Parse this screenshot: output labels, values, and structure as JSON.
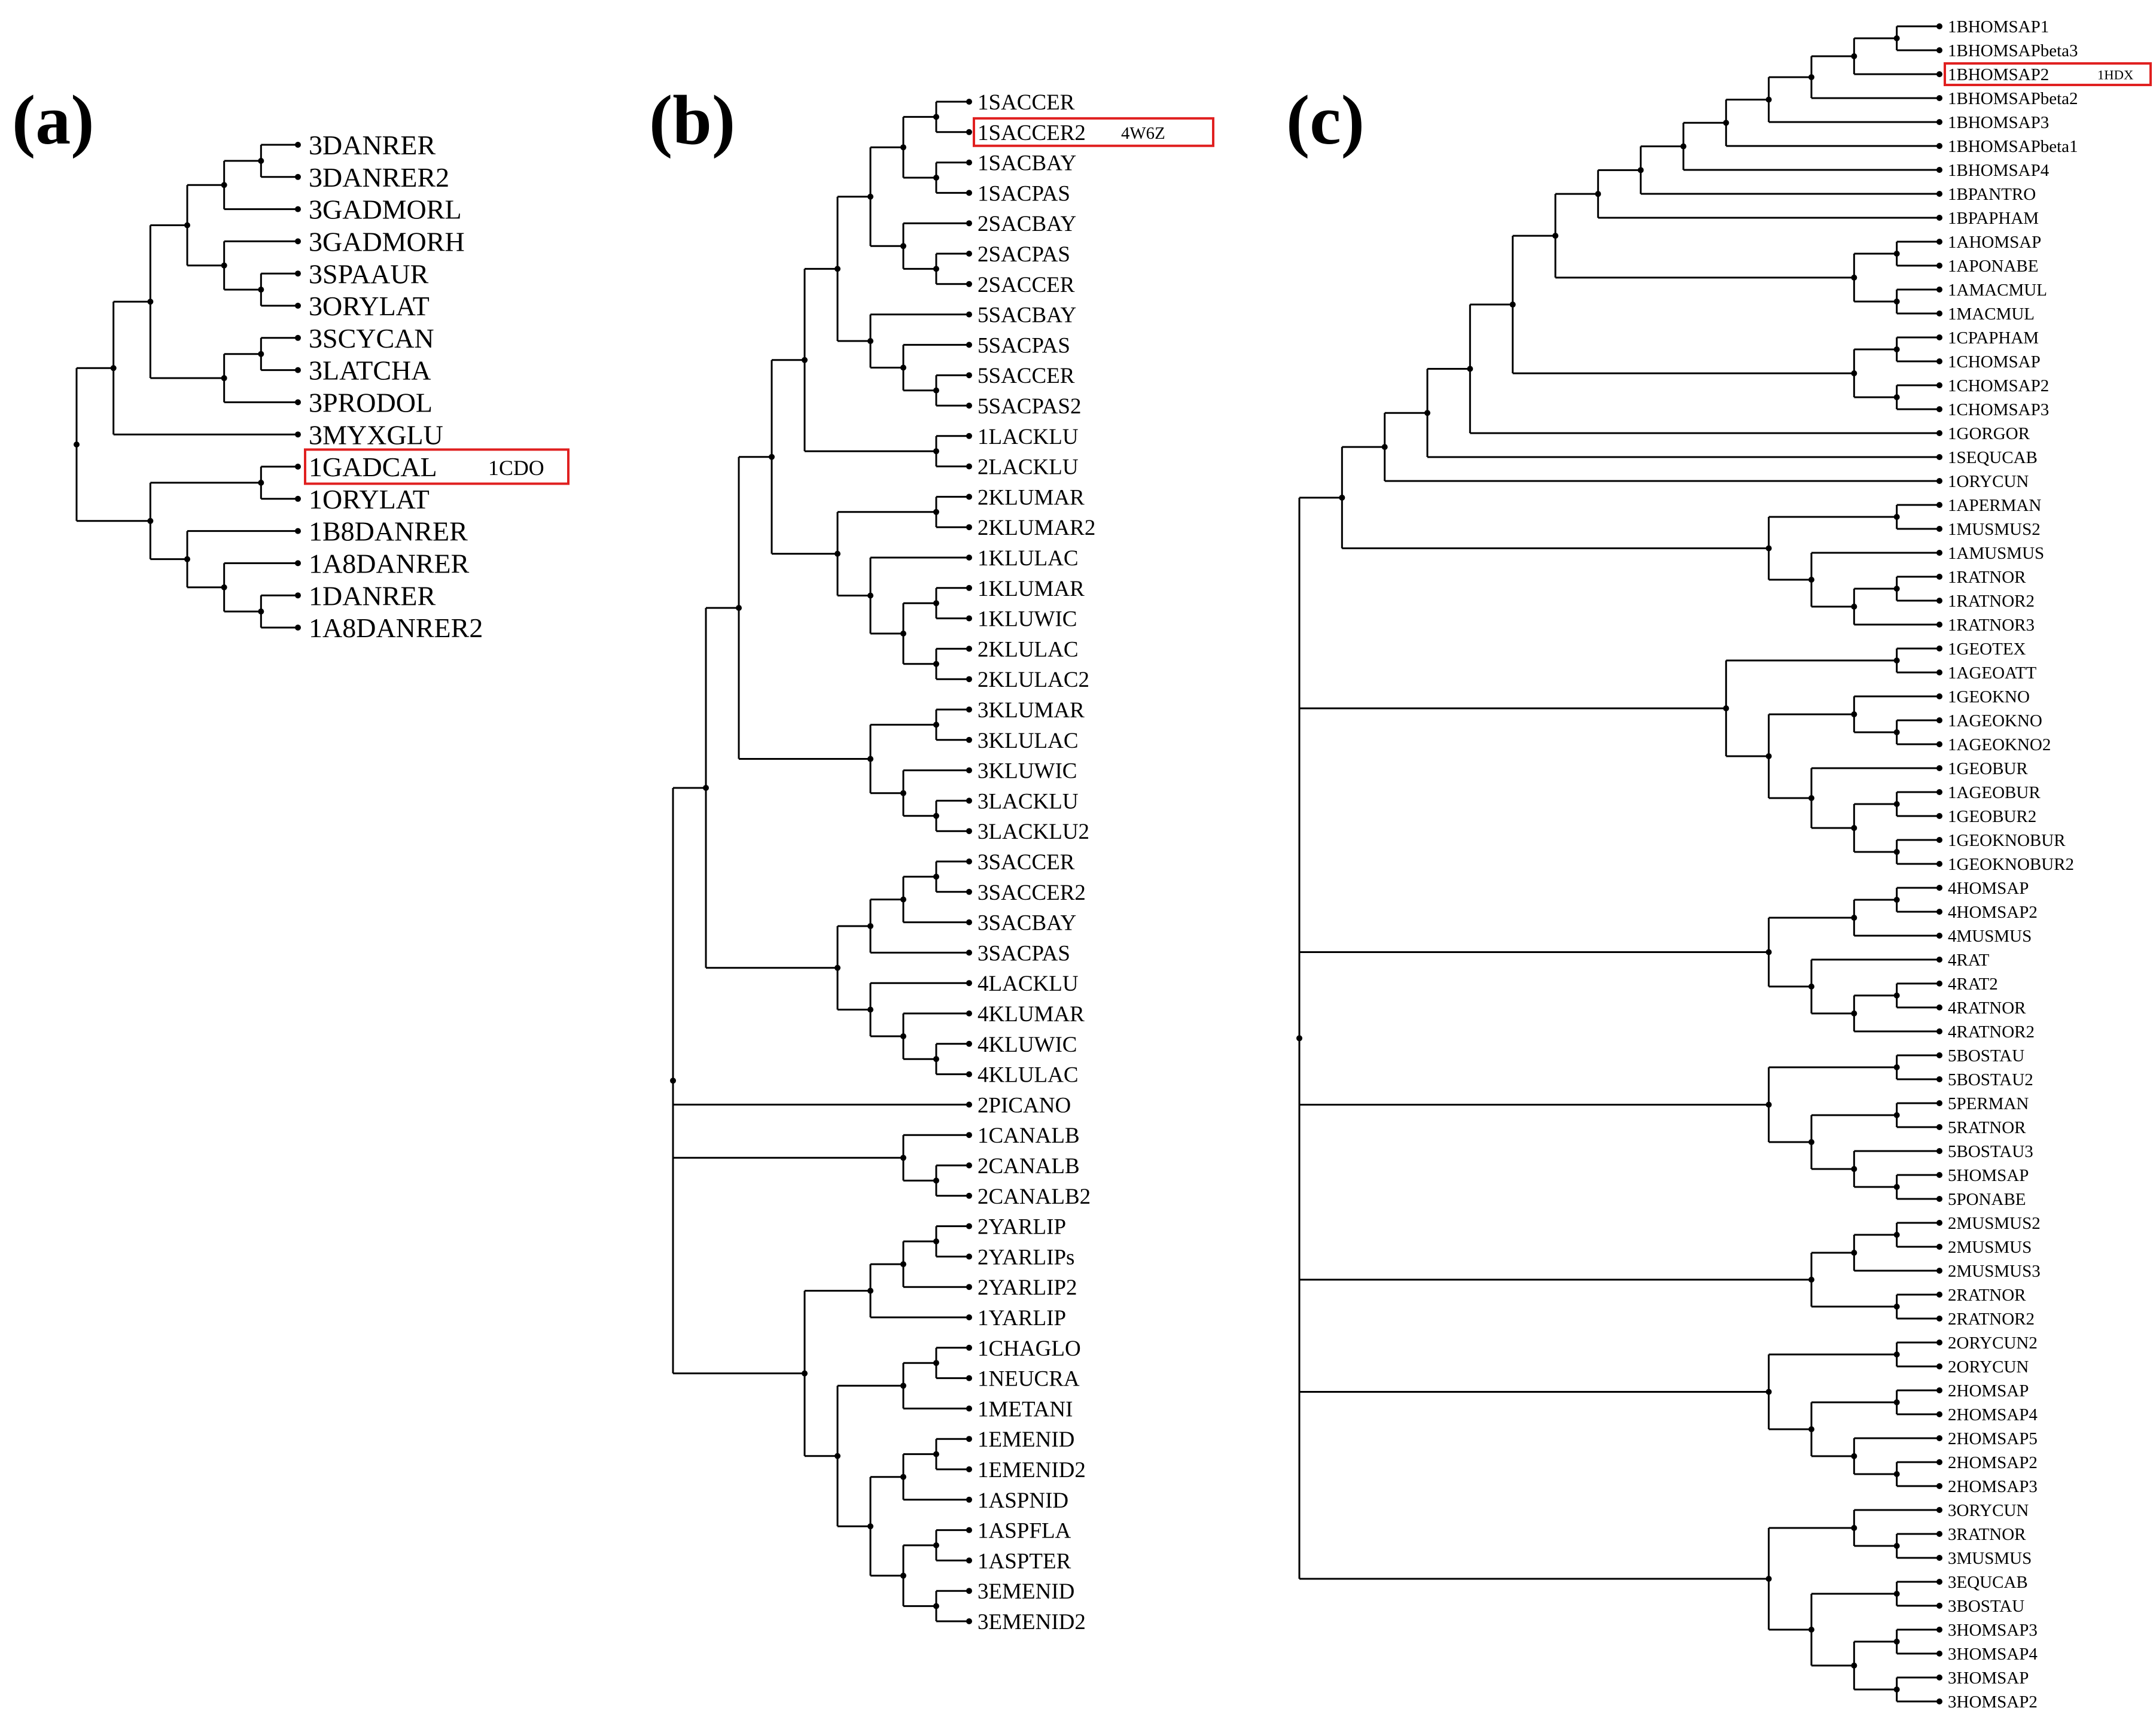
{
  "panels": [
    {
      "id": "a",
      "label": "(a)",
      "highlight": {
        "leaf": "1GADCAL",
        "code": "1CDO"
      },
      "tree": [
        [
          [
            [
              [
                [
                  "3DANRER",
                  "3DANRER2"
                ],
                "3GADMORL"
              ],
              [
                "3GADMORH",
                [
                  "3SPAAUR",
                  "3ORYLAT"
                ]
              ]
            ],
            [
              [
                "3SCYCAN",
                "3LATCHA"
              ],
              "3PRODOL"
            ]
          ],
          "3MYXGLU"
        ],
        [
          [
            "1GADCAL",
            "1ORYLAT"
          ],
          [
            "1B8DANRER",
            [
              "1A8DANRER",
              [
                "1DANRER",
                "1A8DANRER2"
              ]
            ]
          ]
        ]
      ]
    },
    {
      "id": "b",
      "label": "(b)",
      "highlight": {
        "leaf": "1SACCER2",
        "code": "4W6Z"
      },
      "tree": [
        [
          [
            [
              [
                [
                  [
                    [
                      [
                        "1SACCER",
                        "1SACCER2"
                      ],
                      [
                        "1SACBAY",
                        "1SACPAS"
                      ]
                    ],
                    [
                      "2SACBAY",
                      [
                        "2SACPAS",
                        "2SACCER"
                      ]
                    ]
                  ],
                  [
                    "5SACBAY",
                    [
                      "5SACPAS",
                      [
                        "5SACCER",
                        "5SACPAS2"
                      ]
                    ]
                  ]
                ],
                [
                  "1LACKLU",
                  "2LACKLU"
                ]
              ],
              [
                [
                  "2KLUMAR",
                  "2KLUMAR2"
                ],
                [
                  "1KLULAC",
                  [
                    [
                      "1KLUMAR",
                      "1KLUWIC"
                    ],
                    [
                      "2KLULAC",
                      "2KLULAC2"
                    ]
                  ]
                ]
              ]
            ],
            [
              [
                "3KLUMAR",
                "3KLULAC"
              ],
              [
                "3KLUWIC",
                [
                  "3LACKLU",
                  "3LACKLU2"
                ]
              ]
            ]
          ],
          [
            [
              [
                [
                  "3SACCER",
                  "3SACCER2"
                ],
                "3SACBAY"
              ],
              "3SACPAS"
            ],
            [
              "4LACKLU",
              [
                "4KLUMAR",
                [
                  "4KLUWIC",
                  "4KLULAC"
                ]
              ]
            ]
          ]
        ],
        "2PICANO",
        [
          "1CANALB",
          [
            "2CANALB",
            "2CANALB2"
          ]
        ],
        [
          [
            [
              [
                "2YARLIP",
                "2YARLIPs"
              ],
              "2YARLIP2"
            ],
            "1YARLIP"
          ],
          [
            [
              [
                "1CHAGLO",
                "1NEUCRA"
              ],
              "1METANI"
            ],
            [
              [
                [
                  "1EMENID",
                  "1EMENID2"
                ],
                "1ASPNID"
              ],
              [
                [
                  "1ASPFLA",
                  "1ASPTER"
                ],
                [
                  "3EMENID",
                  "3EMENID2"
                ]
              ]
            ]
          ]
        ]
      ]
    },
    {
      "id": "c",
      "label": "(c)",
      "highlight": {
        "leaf": "1BHOMSAP2",
        "code": "1HDX"
      },
      "tree": [
        [
          [
            [
              [
                [
                  [
                    [
                      [
                        [
                          [
                            [
                              [
                                [
                                  [
                                    "1BHOMSAP1",
                                    "1BHOMSAPbeta3"
                                  ],
                                  "1BHOMSAP2"
                                ],
                                "1BHOMSAPbeta2"
                              ],
                              "1BHOMSAP3"
                            ],
                            "1BHOMSAPbeta1"
                          ],
                          "1BHOMSAP4"
                        ],
                        "1BPANTRO"
                      ],
                      "1BPAPHAM"
                    ],
                    [
                      [
                        "1AHOMSAP",
                        "1APONABE"
                      ],
                      [
                        "1AMACMUL",
                        "1MACMUL"
                      ]
                    ]
                  ],
                  [
                    [
                      "1CPAPHAM",
                      "1CHOMSAP"
                    ],
                    [
                      "1CHOMSAP2",
                      "1CHOMSAP3"
                    ]
                  ]
                ],
                "1GORGOR"
              ],
              "1SEQUCAB"
            ],
            "1ORYCUN"
          ],
          [
            [
              "1APERMAN",
              "1MUSMUS2"
            ],
            [
              "1AMUSMUS",
              [
                [
                  "1RATNOR",
                  "1RATNOR2"
                ],
                "1RATNOR3"
              ]
            ]
          ]
        ],
        [
          [
            "1GEOTEX",
            "1AGEOATT"
          ],
          [
            [
              "1GEOKNO",
              [
                "1AGEOKNO",
                "1AGEOKNO2"
              ]
            ],
            [
              "1GEOBUR",
              [
                [
                  "1AGEOBUR",
                  "1GEOBUR2"
                ],
                [
                  "1GEOKNOBUR",
                  "1GEOKNOBUR2"
                ]
              ]
            ]
          ]
        ],
        [
          [
            [
              "4HOMSAP",
              "4HOMSAP2"
            ],
            "4MUSMUS"
          ],
          [
            "4RAT",
            [
              [
                "4RAT2",
                "4RATNOR"
              ],
              "4RATNOR2"
            ]
          ]
        ],
        [
          [
            "5BOSTAU",
            "5BOSTAU2"
          ],
          [
            [
              "5PERMAN",
              "5RATNOR"
            ],
            [
              "5BOSTAU3",
              [
                "5HOMSAP",
                "5PONABE"
              ]
            ]
          ]
        ],
        [
          [
            [
              "2MUSMUS2",
              "2MUSMUS"
            ],
            "2MUSMUS3"
          ],
          [
            "2RATNOR",
            "2RATNOR2"
          ]
        ],
        [
          [
            "2ORYCUN2",
            "2ORYCUN"
          ],
          [
            [
              "2HOMSAP",
              "2HOMSAP4"
            ],
            [
              "2HOMSAP5",
              [
                "2HOMSAP2",
                "2HOMSAP3"
              ]
            ]
          ]
        ],
        [
          [
            "3ORYCUN",
            [
              "3RATNOR",
              "3MUSMUS"
            ]
          ],
          [
            [
              "3EQUCAB",
              "3BOSTAU"
            ],
            [
              [
                "3HOMSAP3",
                "3HOMSAP4"
              ],
              [
                "3HOMSAP",
                "3HOMSAP2"
              ]
            ]
          ]
        ]
      ]
    }
  ]
}
